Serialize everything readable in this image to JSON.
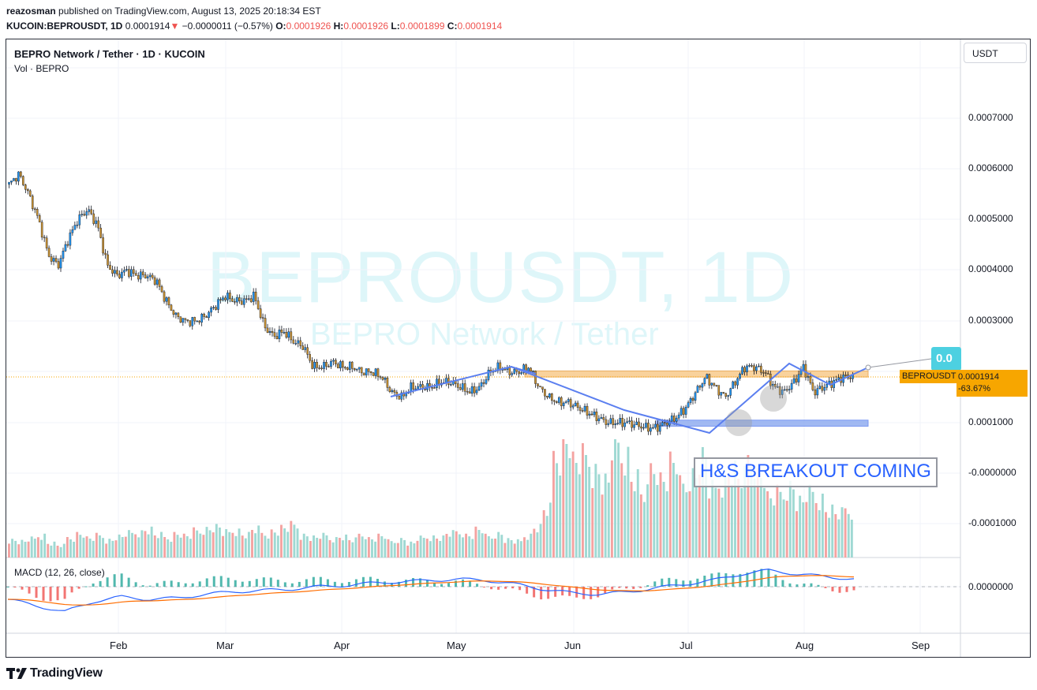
{
  "header": {
    "author": "reazosman",
    "published_text": "published on TradingView.com, August 13, 2025 20:18:34 EST",
    "symbol": "KUCOIN:BEPROUSDT, 1D",
    "last": "0.0001914",
    "change": "−0.0000011 (−0.57%)",
    "open_label": "O:",
    "open": "0.0001926",
    "high_label": "H:",
    "high": "0.0001926",
    "low_label": "L:",
    "low": "0.0001899",
    "close_label": "C:",
    "close": "0.0001914"
  },
  "legend": {
    "title": "BEPRO Network / Tether · 1D · KUCOIN",
    "volume": "Vol · BEPRO",
    "macd": "MACD (12, 26, close)"
  },
  "currency_button": "USDT",
  "watermark": {
    "big": "BEPROUSDT, 1D",
    "small": "BEPRO Network / Tether"
  },
  "price_label": {
    "symbol": "BEPROUSDT",
    "price": "0.0001914",
    "change": "-63.67%"
  },
  "callout_text": "0.0",
  "annotation": "H&S BREAKOUT COMING",
  "footer_logo": "TradingView",
  "colors": {
    "up": "#26a69a",
    "down": "#ef5350",
    "candle_up": "#2196f3",
    "candle_down": "#c99130",
    "trend": "#5b7ff0",
    "resistance": "#f9cb8b",
    "support": "#8aa8f0"
  },
  "chart_data": {
    "type": "candlestick",
    "title": "BEPRO Network / Tether · 1D · KUCOIN",
    "x_ticks": [
      "Feb",
      "Mar",
      "Apr",
      "May",
      "Jun",
      "Jul",
      "Aug",
      "Sep"
    ],
    "y_ticks": [
      "0.0007000",
      "0.0006000",
      "0.0005000",
      "0.0004000",
      "0.0003000",
      "0.0001000",
      "-0.0000000",
      "-0.0001000"
    ],
    "ylim": [
      -0.00015,
      0.0008
    ],
    "macd_y_tick": "0.0000000",
    "resistance_zone": [
      0.00019,
      0.000202
    ],
    "support_zone": [
      9.3e-05,
      0.000105
    ],
    "close_series": [
      0.00057,
      0.00059,
      0.00055,
      0.0005,
      0.00043,
      0.00041,
      0.00046,
      0.0005,
      0.00052,
      0.00049,
      0.00041,
      0.00039,
      0.0004,
      0.00039,
      0.00039,
      0.00038,
      0.00034,
      0.00031,
      0.0003,
      0.0003,
      0.00031,
      0.00033,
      0.00035,
      0.00034,
      0.00034,
      0.00035,
      0.00029,
      0.00027,
      0.00028,
      0.00026,
      0.00025,
      0.00021,
      0.00021,
      0.00022,
      0.00021,
      0.00021,
      0.0002,
      0.0002,
      0.00019,
      0.00016,
      0.00015,
      0.00017,
      0.00017,
      0.00017,
      0.00018,
      0.00018,
      0.00017,
      0.00016,
      0.00017,
      0.0002,
      0.00021,
      0.0002,
      0.0002,
      0.00021,
      0.00017,
      0.00015,
      0.00014,
      0.00014,
      0.00013,
      0.00012,
      0.00011,
      0.0001,
      0.0001,
      0.0001,
      9.5e-05,
      9e-05,
      9e-05,
      0.0001,
      0.00011,
      0.00013,
      0.00016,
      0.00019,
      0.00017,
      0.00015,
      0.00018,
      0.00021,
      0.00021,
      0.0002,
      0.00017,
      0.00016,
      0.00018,
      0.00021,
      0.00016,
      0.00017,
      0.00018,
      0.00019,
      0.000191
    ],
    "volume_series": [
      22,
      20,
      23,
      28,
      18,
      15,
      25,
      30,
      24,
      27,
      22,
      26,
      30,
      32,
      35,
      28,
      25,
      30,
      27,
      33,
      36,
      38,
      31,
      34,
      29,
      35,
      30,
      33,
      37,
      40,
      28,
      25,
      27,
      24,
      26,
      22,
      29,
      24,
      27,
      20,
      23,
      18,
      24,
      26,
      25,
      30,
      32,
      28,
      35,
      26,
      30,
      22,
      20,
      28,
      38,
      60,
      130,
      150,
      120,
      125,
      110,
      95,
      140,
      130,
      100,
      80,
      115,
      100,
      120,
      90,
      105,
      125,
      85,
      95,
      110,
      100,
      125,
      105,
      75,
      80,
      90,
      70,
      80,
      75,
      60,
      55,
      60
    ],
    "macd_series": [
      -1e-05,
      -1.5e-05,
      -2e-05,
      -1.2e-05,
      -8e-06,
      -1e-05,
      -9e-06,
      -6e-06,
      -4e-06,
      -3e-06,
      -2e-06,
      0,
      1e-06,
      3e-06,
      4e-06,
      5e-06,
      6e-06,
      5e-06,
      2e-06,
      -2e-06,
      -5e-06,
      -6e-06,
      -4e-06,
      -1e-06,
      2e-06,
      5e-06,
      1e-05,
      1.3e-05,
      1e-05,
      8e-06,
      6e-06
    ]
  }
}
